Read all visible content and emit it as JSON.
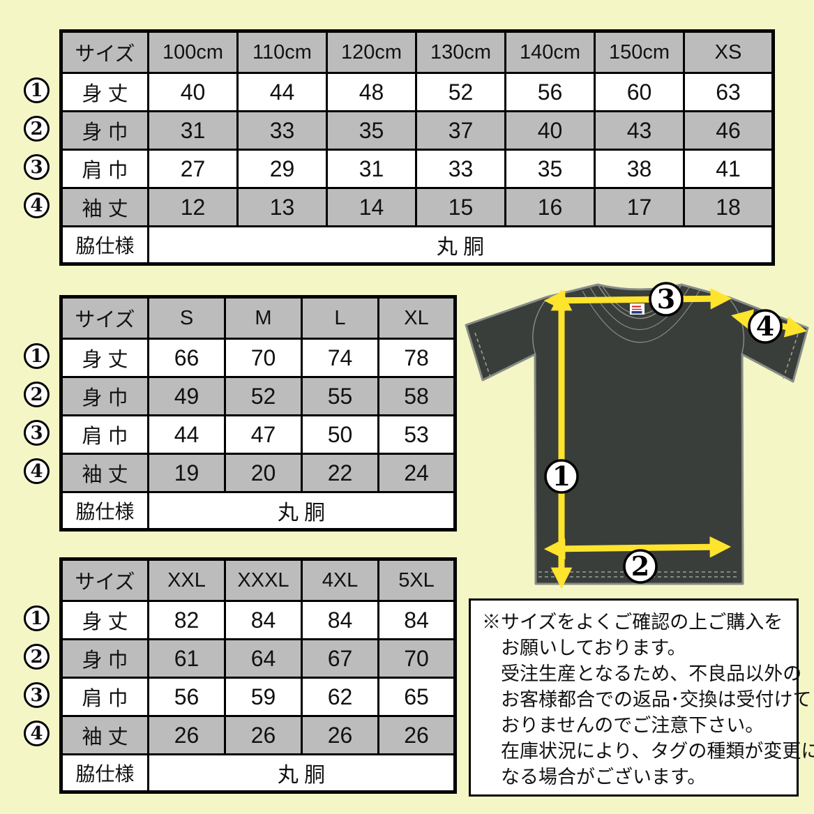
{
  "colors": {
    "background": "#f4f6c6",
    "table_gray": "#bcbcbc",
    "arrow_yellow": "#ffe42e",
    "shirt_dark": "#3a3e3a"
  },
  "tables": [
    {
      "name": "kids",
      "header": [
        "サイズ",
        "100cm",
        "110cm",
        "120cm",
        "130cm",
        "140cm",
        "150cm",
        "XS"
      ],
      "rows": [
        {
          "num": "1",
          "label": "身 丈",
          "values": [
            "40",
            "44",
            "48",
            "52",
            "56",
            "60",
            "63"
          ]
        },
        {
          "num": "2",
          "label": "身 巾",
          "values": [
            "31",
            "33",
            "35",
            "37",
            "40",
            "43",
            "46"
          ]
        },
        {
          "num": "3",
          "label": "肩 巾",
          "values": [
            "27",
            "29",
            "31",
            "33",
            "35",
            "38",
            "41"
          ]
        },
        {
          "num": "4",
          "label": "袖 丈",
          "values": [
            "12",
            "13",
            "14",
            "15",
            "16",
            "17",
            "18"
          ]
        }
      ],
      "footer": {
        "label": "脇仕様",
        "value": "丸 胴"
      }
    },
    {
      "name": "adult",
      "header": [
        "サイズ",
        "S",
        "M",
        "L",
        "XL"
      ],
      "rows": [
        {
          "num": "1",
          "label": "身 丈",
          "values": [
            "66",
            "70",
            "74",
            "78"
          ]
        },
        {
          "num": "2",
          "label": "身 巾",
          "values": [
            "49",
            "52",
            "55",
            "58"
          ]
        },
        {
          "num": "3",
          "label": "肩 巾",
          "values": [
            "44",
            "47",
            "50",
            "53"
          ]
        },
        {
          "num": "4",
          "label": "袖 丈",
          "values": [
            "19",
            "20",
            "22",
            "24"
          ]
        }
      ],
      "footer": {
        "label": "脇仕様",
        "value": "丸 胴"
      }
    },
    {
      "name": "plus",
      "header": [
        "サイズ",
        "XXL",
        "XXXL",
        "4XL",
        "5XL"
      ],
      "rows": [
        {
          "num": "1",
          "label": "身 丈",
          "values": [
            "82",
            "84",
            "84",
            "84"
          ]
        },
        {
          "num": "2",
          "label": "身 巾",
          "values": [
            "61",
            "64",
            "67",
            "70"
          ]
        },
        {
          "num": "3",
          "label": "肩 巾",
          "values": [
            "56",
            "59",
            "62",
            "65"
          ]
        },
        {
          "num": "4",
          "label": "袖 丈",
          "values": [
            "26",
            "26",
            "26",
            "26"
          ]
        }
      ],
      "footer": {
        "label": "脇仕様",
        "value": "丸 胴"
      }
    }
  ],
  "diagram": {
    "circles": [
      {
        "label": "1"
      },
      {
        "label": "2"
      },
      {
        "label": "3"
      },
      {
        "label": "4"
      }
    ]
  },
  "note": {
    "lines": [
      "※サイズをよくご確認の上ご購入を",
      "お願いしております。",
      "受注生産となるため、不良品以外の",
      "お客様都合での返品･交換は受付けて",
      "おりませんのでご注意下さい。",
      "在庫状況により、タグの種類が変更に",
      "なる場合がございます。"
    ]
  }
}
